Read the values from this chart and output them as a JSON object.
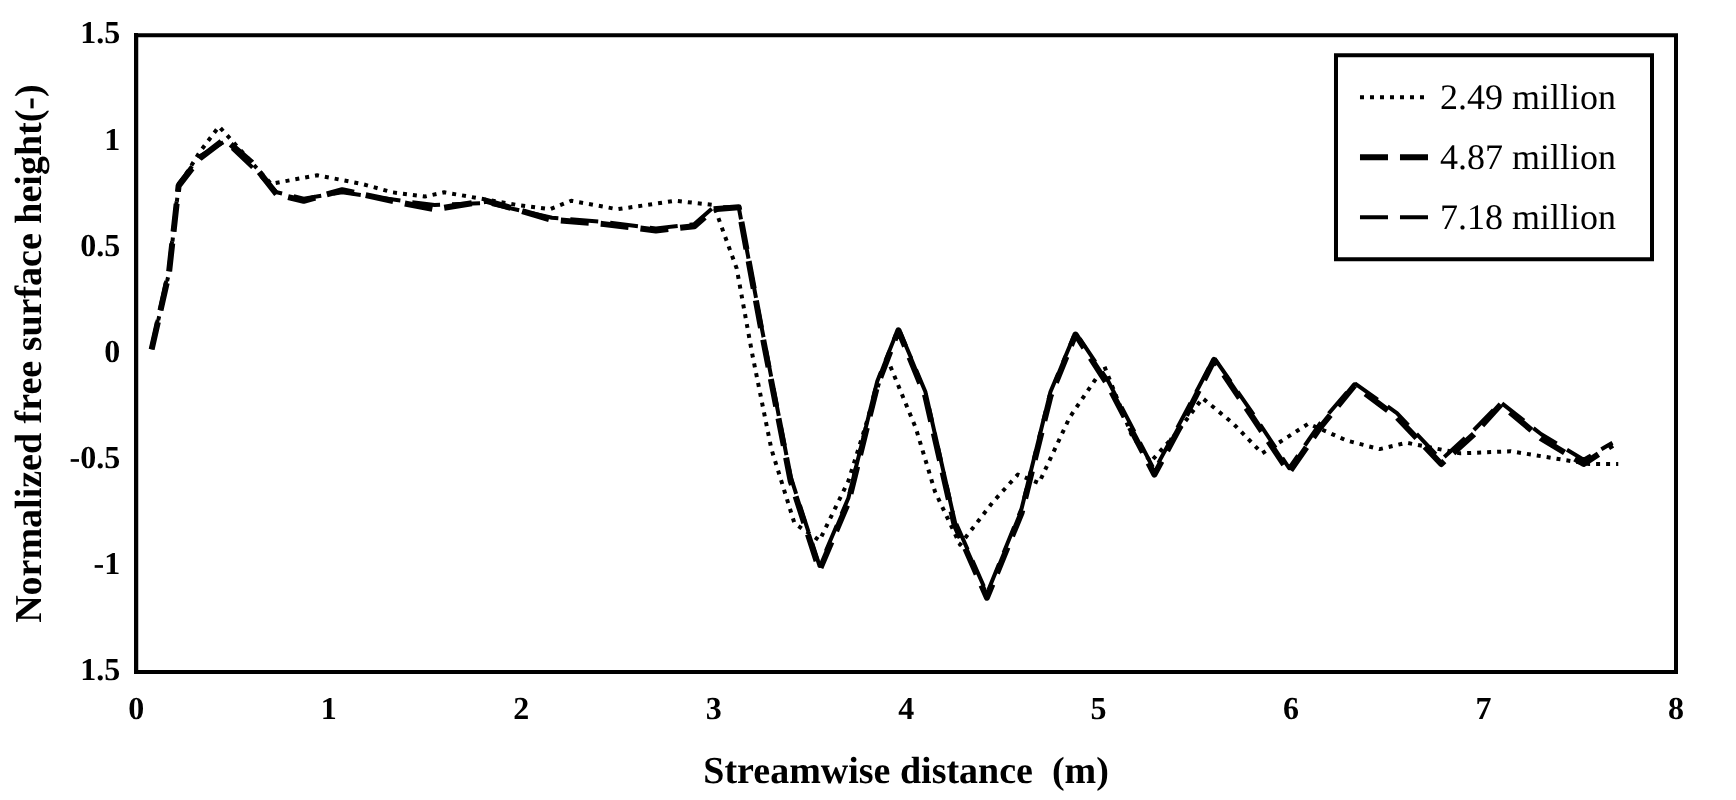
{
  "chart_data": {
    "type": "line",
    "xlabel": "Streamwise distance  (m)",
    "ylabel": "Normalized free surface height(-)",
    "xlim": [
      0,
      8
    ],
    "xticks": [
      0,
      1,
      2,
      3,
      4,
      5,
      6,
      7,
      8
    ],
    "ylim": [
      -1.5,
      1.5
    ],
    "yticks": [
      1.5,
      1,
      0.5,
      0,
      -0.5,
      -1,
      {
        "value": -1.5,
        "label": "1.5"
      }
    ],
    "legend": "top right",
    "series": [
      {
        "name": "2.49 million",
        "color": "#000000",
        "line_style": "dotted",
        "x": [
          0.08,
          0.17,
          0.22,
          0.33,
          0.43,
          0.55,
          0.7,
          0.94,
          1.17,
          1.33,
          1.5,
          1.6,
          1.98,
          2.15,
          2.26,
          2.5,
          2.8,
          3.0,
          3.12,
          3.2,
          3.3,
          3.42,
          3.55,
          3.7,
          3.9,
          4.05,
          4.15,
          4.28,
          4.45,
          4.58,
          4.69,
          4.85,
          5.03,
          5.17,
          5.27,
          5.4,
          5.54,
          5.7,
          5.85,
          6.09,
          6.29,
          6.46,
          6.6,
          6.88,
          7.14,
          7.55,
          7.7
        ],
        "values": [
          0.02,
          0.38,
          0.79,
          0.95,
          1.07,
          0.95,
          0.8,
          0.84,
          0.8,
          0.76,
          0.74,
          0.76,
          0.7,
          0.68,
          0.72,
          0.68,
          0.72,
          0.7,
          0.4,
          0.0,
          -0.45,
          -0.8,
          -0.88,
          -0.6,
          -0.02,
          -0.35,
          -0.65,
          -0.9,
          -0.7,
          -0.57,
          -0.61,
          -0.3,
          -0.06,
          -0.38,
          -0.51,
          -0.38,
          -0.21,
          -0.33,
          -0.47,
          -0.33,
          -0.41,
          -0.45,
          -0.42,
          -0.47,
          -0.46,
          -0.52,
          -0.52
        ]
      },
      {
        "name": "4.87 million",
        "color": "#000000",
        "line_style": "dashed",
        "x": [
          0.08,
          0.17,
          0.22,
          0.33,
          0.46,
          0.6,
          0.73,
          0.87,
          1.07,
          1.38,
          1.55,
          1.82,
          2.16,
          2.43,
          2.7,
          2.9,
          3.0,
          3.13,
          3.25,
          3.4,
          3.55,
          3.7,
          3.85,
          3.96,
          4.1,
          4.25,
          4.42,
          4.6,
          4.75,
          4.88,
          5.05,
          5.29,
          5.45,
          5.6,
          5.8,
          5.99,
          6.15,
          6.33,
          6.55,
          6.78,
          6.95,
          7.09,
          7.3,
          7.52,
          7.67
        ],
        "values": [
          0.02,
          0.38,
          0.79,
          0.92,
          1.01,
          0.9,
          0.75,
          0.72,
          0.77,
          0.71,
          0.68,
          0.72,
          0.63,
          0.61,
          0.58,
          0.6,
          0.68,
          0.69,
          0.1,
          -0.6,
          -1.02,
          -0.7,
          -0.15,
          0.11,
          -0.2,
          -0.8,
          -1.15,
          -0.75,
          -0.2,
          0.09,
          -0.15,
          -0.57,
          -0.3,
          -0.03,
          -0.3,
          -0.56,
          -0.35,
          -0.15,
          -0.3,
          -0.52,
          -0.38,
          -0.24,
          -0.4,
          -0.52,
          -0.43
        ]
      },
      {
        "name": "7.18 million",
        "color": "#000000",
        "line_style": "dashed",
        "x": [
          0.08,
          0.17,
          0.22,
          0.33,
          0.46,
          0.6,
          0.73,
          0.87,
          1.07,
          1.38,
          1.55,
          1.82,
          2.16,
          2.43,
          2.7,
          2.9,
          3.0,
          3.13,
          3.25,
          3.4,
          3.55,
          3.7,
          3.85,
          3.96,
          4.1,
          4.25,
          4.42,
          4.6,
          4.75,
          4.88,
          5.05,
          5.29,
          5.45,
          5.6,
          5.8,
          5.99,
          6.15,
          6.33,
          6.55,
          6.78,
          6.95,
          7.09,
          7.3,
          7.52,
          7.67
        ],
        "values": [
          0.03,
          0.4,
          0.8,
          0.93,
          1.0,
          0.88,
          0.76,
          0.73,
          0.76,
          0.72,
          0.7,
          0.71,
          0.64,
          0.62,
          0.59,
          0.61,
          0.69,
          0.69,
          0.12,
          -0.58,
          -1.0,
          -0.68,
          -0.13,
          0.12,
          -0.18,
          -0.78,
          -1.13,
          -0.73,
          -0.18,
          0.1,
          -0.13,
          -0.55,
          -0.28,
          -0.02,
          -0.28,
          -0.54,
          -0.33,
          -0.14,
          -0.28,
          -0.5,
          -0.36,
          -0.23,
          -0.38,
          -0.5,
          -0.42
        ]
      }
    ]
  }
}
